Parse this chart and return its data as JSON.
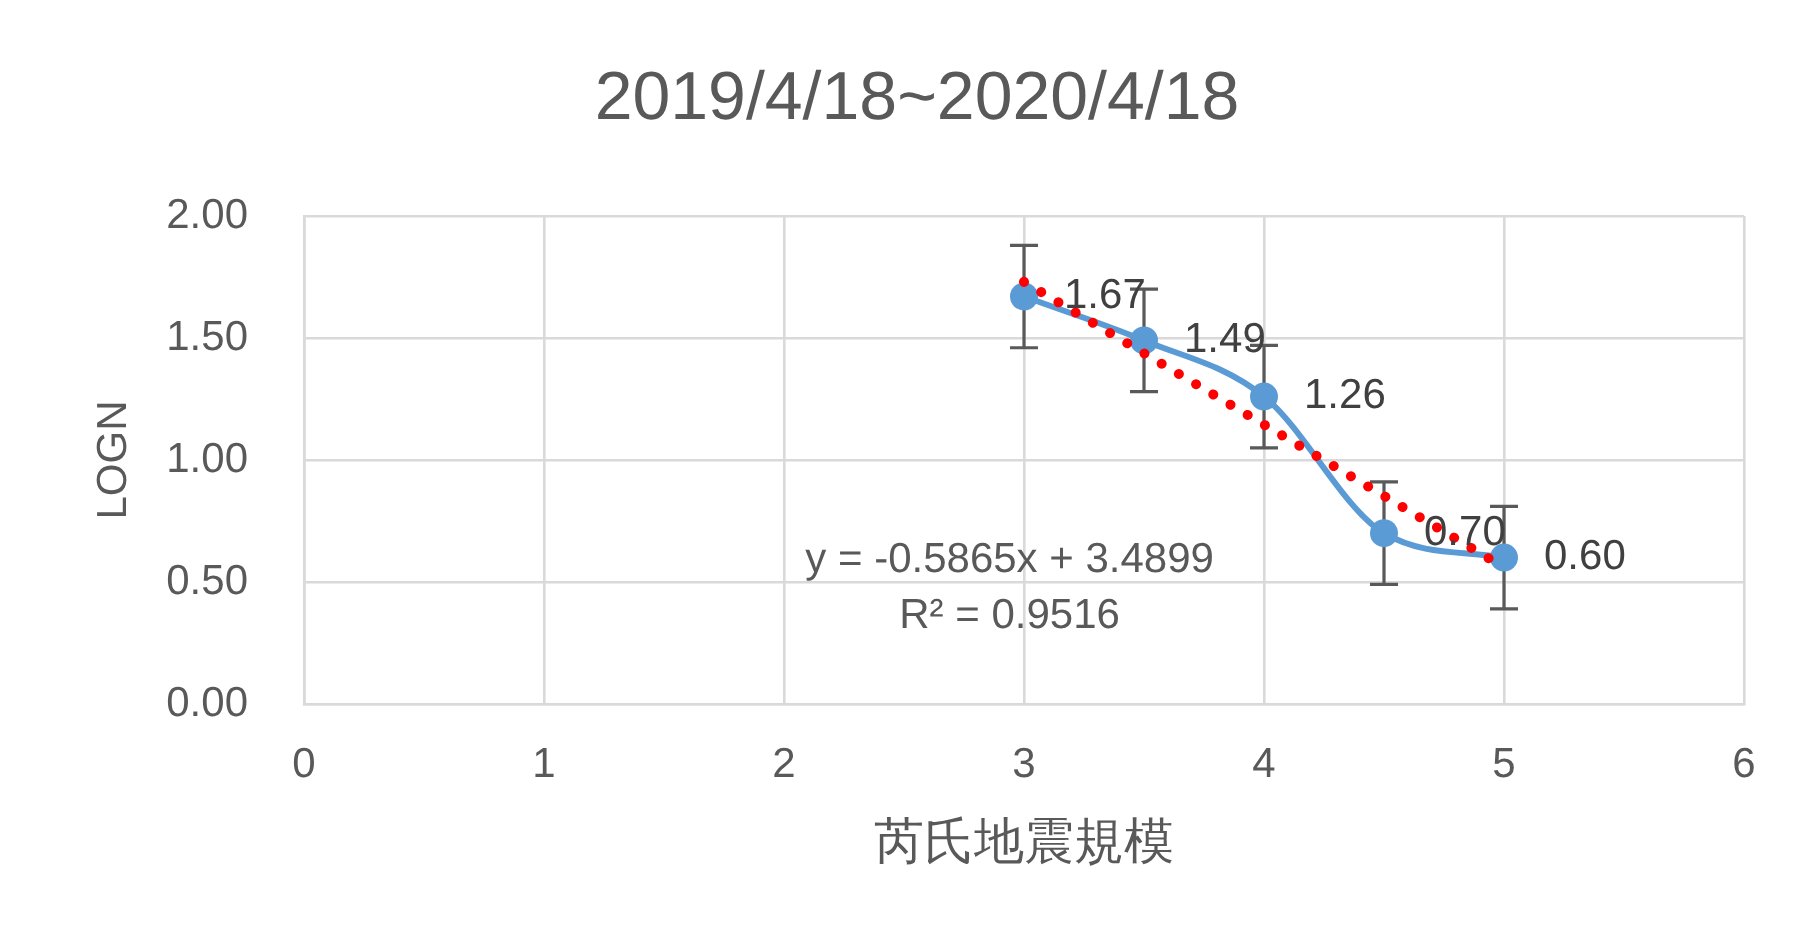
{
  "chart_data": {
    "type": "line",
    "title": "2019/4/18~2020/4/18",
    "xlabel": "芮氏地震規模",
    "ylabel": "LOGN",
    "x": [
      3,
      3.5,
      4,
      4.5,
      5
    ],
    "series": [
      {
        "type": "line",
        "color": "#5b9bd5",
        "values": [
          1.67,
          1.49,
          1.26,
          0.7,
          0.6
        ],
        "errors": [
          0.21,
          0.21,
          0.21,
          0.21,
          0.21
        ],
        "value_labels": [
          "1.67",
          "1.49",
          "1.26",
          "0.70",
          "0.60"
        ],
        "marker": "circle",
        "line_style": "solid"
      },
      {
        "type": "line",
        "color": "#ff0000",
        "x": [
          3,
          5
        ],
        "values": [
          1.73,
          0.56
        ],
        "marker": "none",
        "line_style": "dotted"
      }
    ],
    "annotations": [
      "y = -0.5865x + 3.4899",
      "R² = 0.9516"
    ],
    "xlim": [
      0,
      6
    ],
    "xticks": [
      0,
      1,
      2,
      3,
      4,
      5,
      6
    ],
    "ylim": [
      0,
      2
    ],
    "yticks": [
      {
        "value": 0,
        "label": "0.00"
      },
      {
        "value": 0.5,
        "label": "0.50"
      },
      {
        "value": 1,
        "label": "1.00"
      },
      {
        "value": 1.5,
        "label": "1.50"
      },
      {
        "value": 2,
        "label": "2.00"
      }
    ],
    "grid": true,
    "legend": false
  }
}
